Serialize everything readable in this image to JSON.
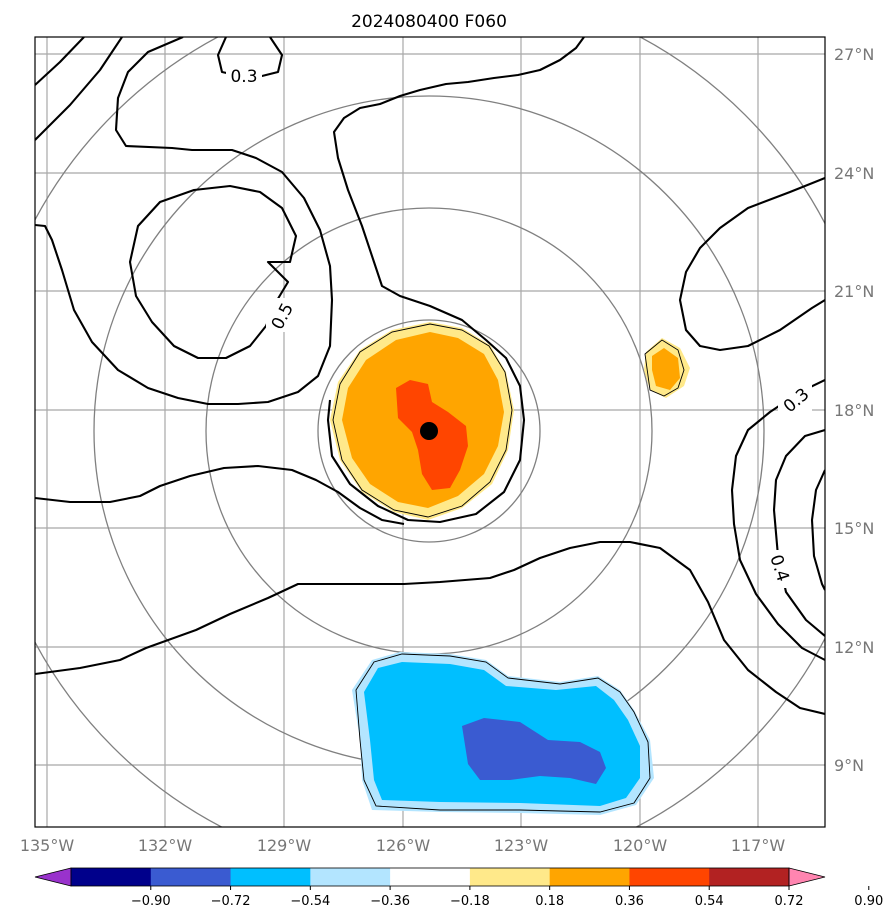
{
  "title": "2024080400 F060",
  "lon_ticks": [
    "135°W",
    "132°W",
    "129°W",
    "126°W",
    "123°W",
    "120°W",
    "117°W"
  ],
  "lat_ticks": [
    "27°N",
    "24°N",
    "21°N",
    "18°N",
    "15°N",
    "12°N",
    "9°N"
  ],
  "contour_labels": [
    "0.3",
    "0.5",
    "0.3",
    "0.4"
  ],
  "colorbar": {
    "ticks": [
      "−0.90",
      "−0.72",
      "−0.54",
      "−0.36",
      "−0.18",
      "0.18",
      "0.36",
      "0.54",
      "0.72",
      "0.90"
    ],
    "colors": [
      "#9932CC",
      "#00008B",
      "#3A5BD1",
      "#00BFFF",
      "#B3E5FF",
      "#FFFFFF",
      "#FFE98A",
      "#FFA500",
      "#FF4500",
      "#B22222",
      "#FF85B0"
    ]
  },
  "center_marker": {
    "lon": -125.7,
    "lat": 17.4
  }
}
